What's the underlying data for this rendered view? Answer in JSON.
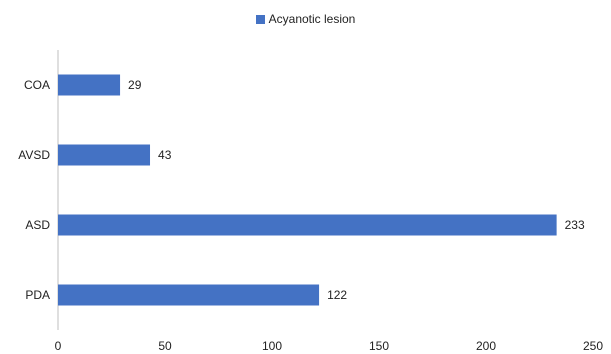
{
  "chart_data": {
    "type": "bar",
    "orientation": "horizontal",
    "categories": [
      "COA",
      "AVSD",
      "ASD",
      "PDA"
    ],
    "series": [
      {
        "name": "Acyanotic lesion",
        "values": [
          29,
          43,
          233,
          122
        ],
        "color": "#4472C4"
      }
    ],
    "xlim": [
      0,
      250
    ],
    "xticks": [
      0,
      50,
      100,
      150,
      200,
      250
    ],
    "data_labels": true,
    "grid": false,
    "legend_position": "top"
  }
}
